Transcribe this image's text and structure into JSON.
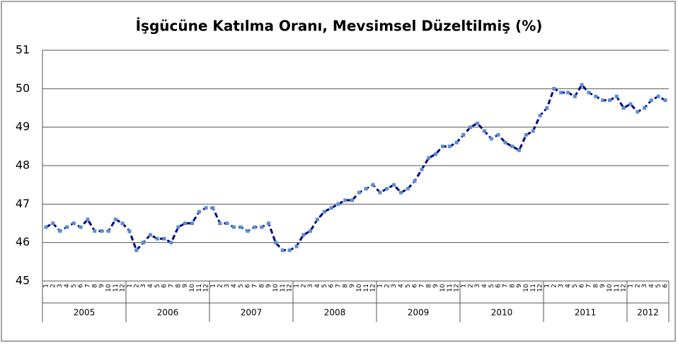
{
  "chart_data": {
    "type": "line",
    "title": "İşgücüne Katılma Oranı, Mevsimsel Düzeltilmiş (%)",
    "categories": [
      "1",
      "2",
      "3",
      "4",
      "5",
      "6",
      "7",
      "8",
      "9",
      "10",
      "11",
      "12",
      "1",
      "2",
      "3",
      "4",
      "5",
      "6",
      "7",
      "8",
      "9",
      "10",
      "11",
      "12",
      "1",
      "2",
      "3",
      "4",
      "5",
      "6",
      "7",
      "8",
      "9",
      "10",
      "11",
      "12",
      "1",
      "2",
      "3",
      "4",
      "5",
      "6",
      "7",
      "8",
      "9",
      "10",
      "11",
      "12",
      "1",
      "2",
      "3",
      "4",
      "5",
      "6",
      "7",
      "8",
      "9",
      "10",
      "11",
      "12",
      "1",
      "2",
      "3",
      "4",
      "5",
      "6",
      "7",
      "8",
      "9",
      "10",
      "11",
      "12",
      "1",
      "2",
      "3",
      "4",
      "5",
      "6",
      "7",
      "8",
      "9",
      "10",
      "11",
      "12",
      "1",
      "2",
      "3",
      "4",
      "5",
      "6"
    ],
    "year_groups": [
      {
        "label": "2005",
        "count": 12
      },
      {
        "label": "2006",
        "count": 12
      },
      {
        "label": "2007",
        "count": 12
      },
      {
        "label": "2008",
        "count": 12
      },
      {
        "label": "2009",
        "count": 12
      },
      {
        "label": "2010",
        "count": 12
      },
      {
        "label": "2011",
        "count": 12
      },
      {
        "label": "2012",
        "count": 6
      }
    ],
    "series": [
      {
        "color": "#000080",
        "marker_color": "#5b8fd0",
        "values": [
          46.4,
          46.5,
          46.3,
          46.4,
          46.5,
          46.4,
          46.6,
          46.3,
          46.3,
          46.3,
          46.6,
          46.5,
          46.3,
          45.8,
          46.0,
          46.2,
          46.1,
          46.1,
          46.0,
          46.4,
          46.5,
          46.5,
          46.8,
          46.9,
          46.9,
          46.5,
          46.5,
          46.4,
          46.4,
          46.3,
          46.4,
          46.4,
          46.5,
          46.0,
          45.8,
          45.8,
          45.9,
          46.2,
          46.3,
          46.6,
          46.8,
          46.9,
          47.0,
          47.1,
          47.1,
          47.3,
          47.4,
          47.5,
          47.3,
          47.4,
          47.5,
          47.3,
          47.4,
          47.6,
          47.9,
          48.2,
          48.3,
          48.5,
          48.5,
          48.6,
          48.8,
          49.0,
          49.1,
          48.9,
          48.7,
          48.8,
          48.6,
          48.5,
          48.4,
          48.8,
          48.9,
          49.3,
          49.5,
          50.0,
          49.9,
          49.9,
          49.8,
          50.1,
          49.9,
          49.8,
          49.7,
          49.7,
          49.8,
          49.5,
          49.6,
          49.4,
          49.5,
          49.7,
          49.8,
          49.7
        ]
      }
    ],
    "ylim": [
      45,
      51
    ],
    "yticks": [
      45,
      46,
      47,
      48,
      49,
      50,
      51
    ],
    "grid": true
  }
}
